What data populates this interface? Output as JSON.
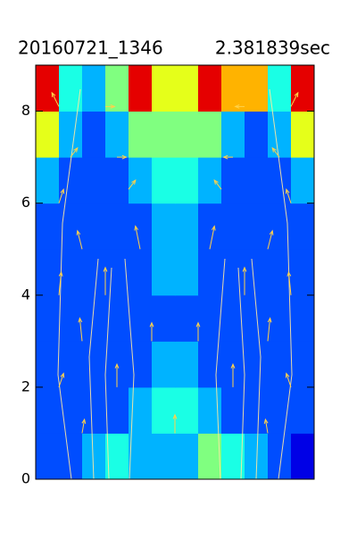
{
  "chart_data": {
    "type": "contour",
    "title": "20160721_1346",
    "subtitle": "2.381839sec",
    "colormap": "jet",
    "levels": 10,
    "xlim": [
      0,
      12
    ],
    "ylim": [
      0,
      9
    ],
    "yticks": [
      0,
      2,
      4,
      6,
      8
    ],
    "z": [
      [
        0.2,
        0.25,
        0.35,
        0.45,
        0.35,
        0.3,
        0.3,
        0.55,
        0.4,
        0.3,
        0.2,
        0.15
      ],
      [
        0.25,
        0.25,
        0.25,
        0.25,
        0.3,
        0.45,
        0.45,
        0.3,
        0.25,
        0.25,
        0.25,
        0.25
      ],
      [
        0.25,
        0.25,
        0.25,
        0.25,
        0.25,
        0.35,
        0.35,
        0.25,
        0.25,
        0.25,
        0.25,
        0.25
      ],
      [
        0.25,
        0.25,
        0.25,
        0.25,
        0.25,
        0.25,
        0.25,
        0.25,
        0.25,
        0.25,
        0.25,
        0.25
      ],
      [
        0.25,
        0.25,
        0.25,
        0.25,
        0.25,
        0.3,
        0.3,
        0.25,
        0.25,
        0.25,
        0.25,
        0.25
      ],
      [
        0.25,
        0.25,
        0.25,
        0.25,
        0.25,
        0.35,
        0.35,
        0.25,
        0.25,
        0.25,
        0.25,
        0.25
      ],
      [
        0.3,
        0.25,
        0.25,
        0.25,
        0.3,
        0.45,
        0.45,
        0.3,
        0.25,
        0.25,
        0.25,
        0.3
      ],
      [
        0.6,
        0.3,
        0.25,
        0.3,
        0.5,
        0.55,
        0.55,
        0.5,
        0.3,
        0.25,
        0.3,
        0.6
      ],
      [
        0.9,
        0.4,
        0.3,
        0.5,
        0.9,
        0.6,
        0.6,
        0.9,
        0.7,
        0.7,
        0.4,
        0.9
      ]
    ],
    "vectors": {
      "color": "#ffd24a",
      "x": [
        1,
        3,
        9,
        11,
        1.5,
        3.5,
        8.5,
        10.5,
        1,
        4,
        8,
        11,
        2,
        4.5,
        7.5,
        10,
        1,
        3,
        9,
        11,
        2,
        5,
        7,
        10,
        1,
        3.5,
        8.5,
        11,
        2,
        6,
        10
      ],
      "y": [
        8.1,
        8.1,
        8.1,
        8.1,
        7,
        7,
        7,
        7,
        6,
        6.3,
        6.3,
        6,
        5,
        5,
        5,
        5,
        4,
        4,
        4,
        4,
        3,
        3,
        3,
        3,
        2,
        2,
        2,
        2,
        1,
        1,
        1
      ],
      "u": [
        -0.3,
        0.4,
        -0.4,
        0.3,
        0.3,
        0.4,
        -0.4,
        -0.3,
        0.2,
        0.3,
        -0.3,
        -0.2,
        -0.2,
        -0.2,
        0.2,
        0.2,
        0.1,
        0,
        0,
        -0.1,
        -0.1,
        0,
        0,
        0.1,
        0.2,
        0,
        0,
        -0.2,
        0.1,
        0,
        -0.1
      ],
      "v": [
        0.3,
        0,
        0,
        0.3,
        0.2,
        0,
        0,
        0.2,
        0.3,
        0.2,
        0.2,
        0.3,
        0.4,
        0.5,
        0.5,
        0.4,
        0.5,
        0.6,
        0.6,
        0.5,
        0.5,
        0.4,
        0.4,
        0.5,
        0.3,
        0.5,
        0.5,
        0.3,
        0.3,
        0.4,
        0.3
      ]
    }
  }
}
